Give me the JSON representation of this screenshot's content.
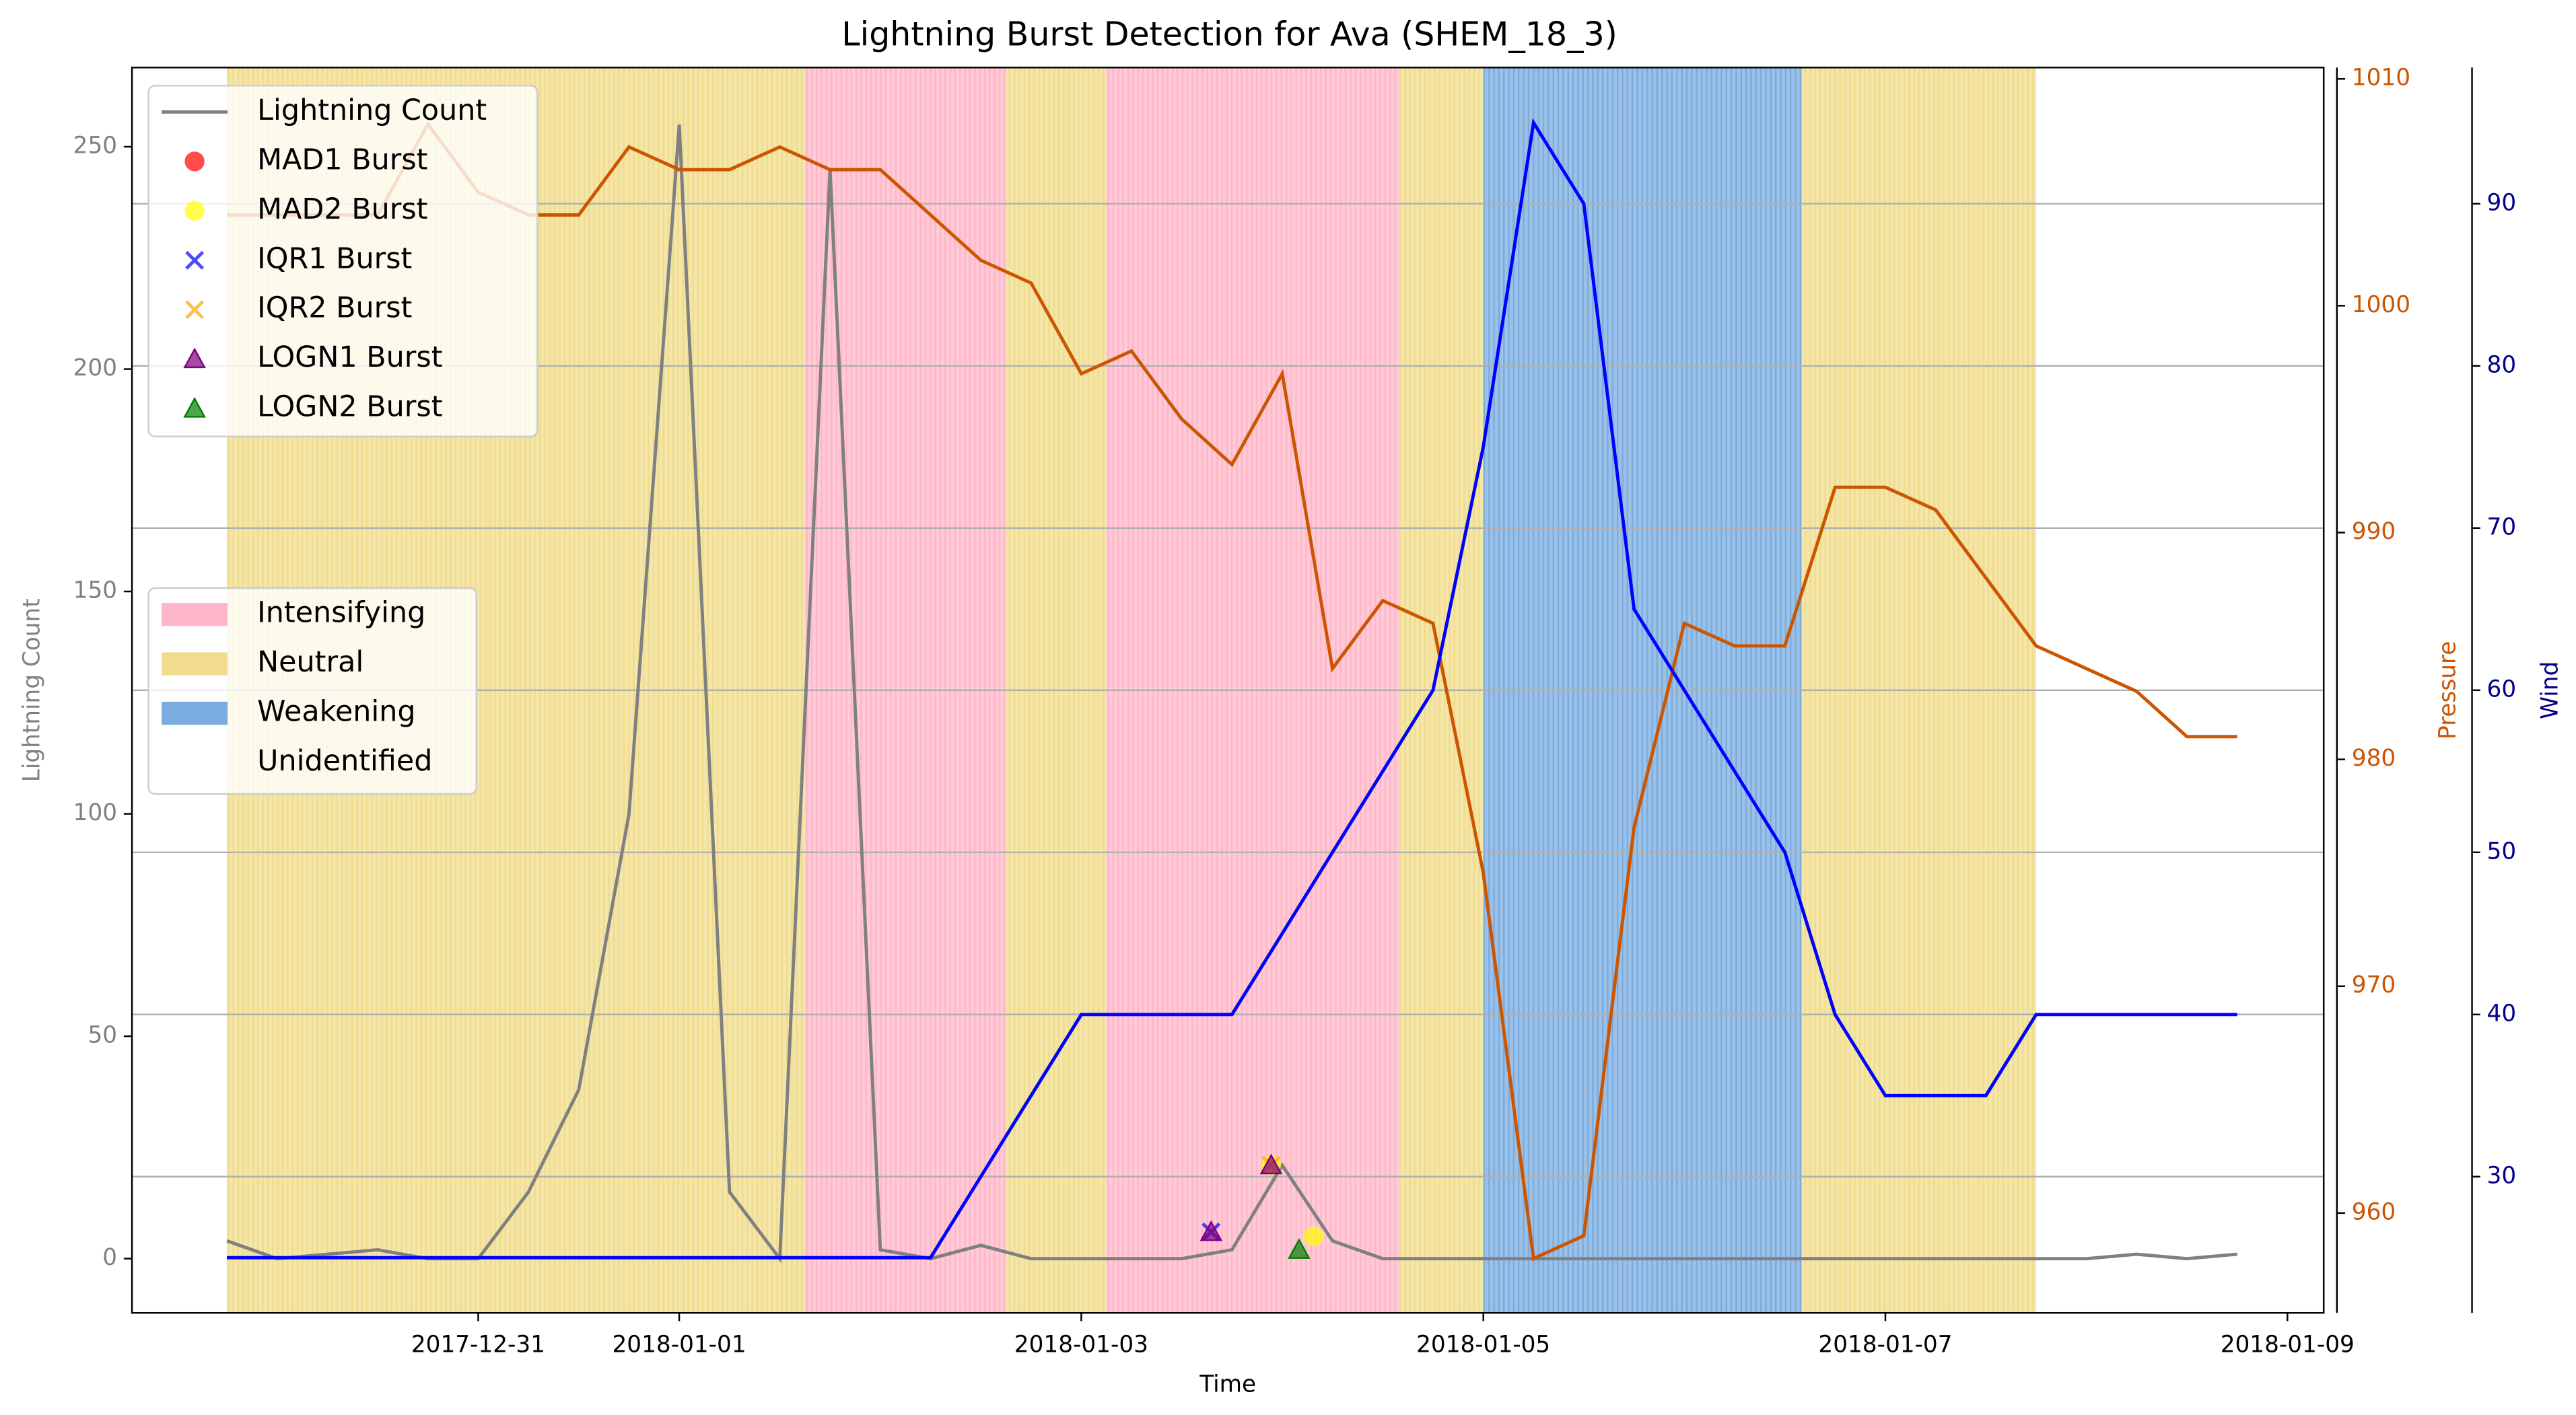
{
  "chart_data": {
    "type": "line",
    "title": "Lightning Burst Detection for Ava (SHEM_18_3)",
    "xlabel": "Time",
    "ylabel": "Lightning Count",
    "y2label": "Pressure",
    "y3label": "Wind",
    "x": [
      "2017-12-29T18:00",
      "2017-12-30T00:00",
      "2017-12-30T06:00",
      "2017-12-30T12:00",
      "2017-12-30T18:00",
      "2017-12-31T00:00",
      "2017-12-31T06:00",
      "2017-12-31T12:00",
      "2017-12-31T18:00",
      "2018-01-01T00:00",
      "2018-01-01T06:00",
      "2018-01-01T12:00",
      "2018-01-01T18:00",
      "2018-01-02T00:00",
      "2018-01-02T06:00",
      "2018-01-02T12:00",
      "2018-01-02T18:00",
      "2018-01-03T00:00",
      "2018-01-03T06:00",
      "2018-01-03T12:00",
      "2018-01-03T18:00",
      "2018-01-04T00:00",
      "2018-01-04T06:00",
      "2018-01-04T12:00",
      "2018-01-04T18:00",
      "2018-01-05T00:00",
      "2018-01-05T06:00",
      "2018-01-05T12:00",
      "2018-01-05T18:00",
      "2018-01-06T00:00",
      "2018-01-06T06:00",
      "2018-01-06T12:00",
      "2018-01-06T18:00",
      "2018-01-07T00:00",
      "2018-01-07T06:00",
      "2018-01-07T12:00",
      "2018-01-07T18:00",
      "2018-01-08T00:00",
      "2018-01-08T06:00",
      "2018-01-08T12:00",
      "2018-01-08T18:00"
    ],
    "xlim": [
      "2017-12-29T06:40",
      "2018-01-09T04:20"
    ],
    "xticks": [
      "2017-12-31",
      "2018-01-01",
      "2018-01-03",
      "2018-01-05",
      "2018-01-07",
      "2018-01-09"
    ],
    "ylim": [
      -12.2,
      267.8
    ],
    "yticks": [
      0,
      50,
      100,
      150,
      200,
      250
    ],
    "y2lim": [
      955.6,
      1010.5
    ],
    "y2ticks": [
      960,
      970,
      980,
      990,
      1000,
      1010
    ],
    "y3lim": [
      21.6,
      98.4
    ],
    "y3ticks": [
      30,
      40,
      50,
      60,
      70,
      80,
      90
    ],
    "grid": true,
    "grid_axis": "y3",
    "ylabel_color": "#808080",
    "y2_color": "#cc5500",
    "y3_color": "#00008b",
    "series": [
      {
        "name": "Lightning Count",
        "color": "#808080",
        "axis": "y",
        "values": [
          4,
          0,
          1,
          2,
          0,
          0,
          15,
          38,
          100,
          255,
          15,
          0,
          245,
          2,
          0,
          3,
          0,
          0,
          0,
          0,
          2,
          21,
          4,
          0,
          0,
          0,
          0,
          0,
          0,
          0,
          0,
          0,
          0,
          0,
          0,
          0,
          0,
          0,
          1,
          0,
          1
        ]
      },
      {
        "color": "#cc5500",
        "axis": "y2",
        "values": [
          1004,
          1004,
          1004,
          1004,
          1008,
          1005,
          1004,
          1004,
          1007,
          1006,
          1006,
          1007,
          1006,
          1006,
          1004,
          1002,
          1001,
          997,
          998,
          995,
          993,
          997,
          984,
          987,
          986,
          975,
          958,
          959,
          977,
          986,
          985,
          985,
          992,
          992,
          991,
          988,
          985,
          984,
          983,
          981,
          981
        ]
      },
      {
        "color": "#0000ff",
        "axis": "y3",
        "values": [
          25,
          25,
          25,
          25,
          25,
          25,
          25,
          25,
          25,
          25,
          25,
          25,
          25,
          25,
          25,
          30,
          35,
          40,
          40,
          40,
          40,
          45,
          50,
          55,
          60,
          75,
          95,
          90,
          65,
          60,
          55,
          50,
          40,
          35,
          35,
          35,
          40,
          40,
          40,
          40,
          40
        ]
      }
    ],
    "bursts": [
      {
        "name": "MAD1 Burst",
        "color": "#ff0000",
        "marker": "circle",
        "x": [],
        "values": []
      },
      {
        "name": "MAD2 Burst",
        "color": "#ffff00",
        "marker": "circle",
        "x": [
          "2018-01-03T22:40",
          "2018-01-04T03:45"
        ],
        "values": [
          21,
          5
        ]
      },
      {
        "name": "IQR1 Burst",
        "color": "#0000ff",
        "marker": "x",
        "x": [
          "2018-01-03T15:30"
        ],
        "values": [
          6
        ]
      },
      {
        "name": "IQR2 Burst",
        "color": "#ffa500",
        "marker": "x",
        "x": [
          "2018-01-03T22:40"
        ],
        "values": [
          21
        ]
      },
      {
        "name": "LOGN1 Burst",
        "color": "#800080",
        "marker": "triangle",
        "x": [
          "2018-01-03T15:30",
          "2018-01-03T22:40"
        ],
        "values": [
          6,
          21
        ]
      },
      {
        "name": "LOGN2 Burst",
        "color": "#008000",
        "marker": "triangle",
        "x": [
          "2018-01-04T02:00"
        ],
        "values": [
          2
        ]
      }
    ],
    "legend": "upper left",
    "phase_legend": "center left",
    "phases": [
      {
        "name": "Intensifying",
        "color": "#ffb6c8"
      },
      {
        "name": "Neutral",
        "color": "#f0dc8c"
      },
      {
        "name": "Weakening",
        "color": "#7aacdf"
      },
      {
        "name": "Unidentified",
        "color": "#ffffff"
      }
    ],
    "phase_spans": [
      {
        "start": "2017-12-29T18:00",
        "end": "2018-01-01T15:00",
        "phase": "Neutral"
      },
      {
        "start": "2018-01-01T15:00",
        "end": "2018-01-02T15:00",
        "phase": "Intensifying"
      },
      {
        "start": "2018-01-02T15:00",
        "end": "2018-01-03T03:00",
        "phase": "Neutral"
      },
      {
        "start": "2018-01-03T03:00",
        "end": "2018-01-04T14:00",
        "phase": "Intensifying"
      },
      {
        "start": "2018-01-04T14:00",
        "end": "2018-01-05T00:00",
        "phase": "Neutral"
      },
      {
        "start": "2018-01-05T00:00",
        "end": "2018-01-06T14:00",
        "phase": "Weakening"
      },
      {
        "start": "2018-01-06T14:00",
        "end": "2018-01-07T18:00",
        "phase": "Neutral"
      }
    ]
  }
}
